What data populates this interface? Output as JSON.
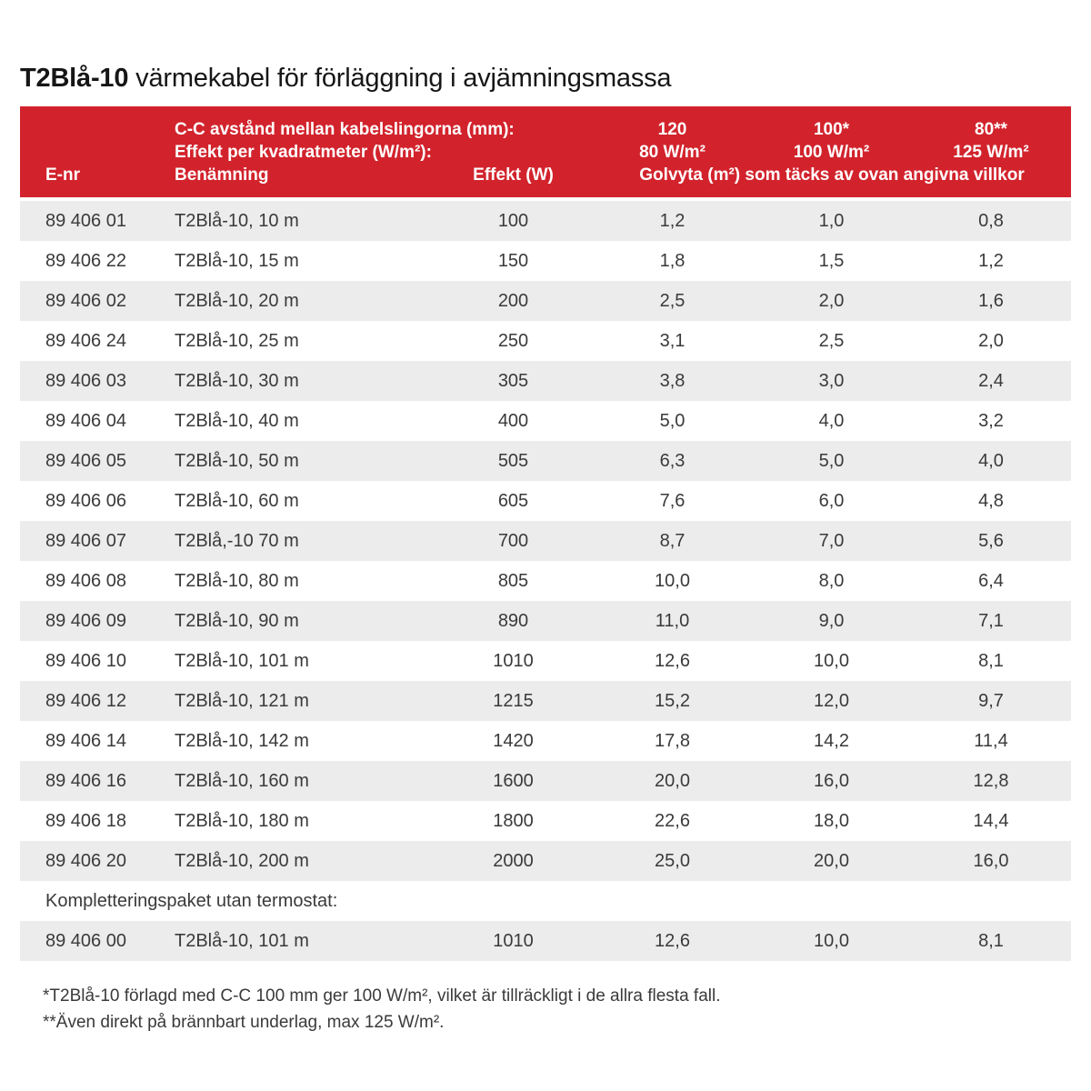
{
  "colors": {
    "header_red": "#d2232c",
    "row_alt": "#ececec"
  },
  "page": {
    "title_bold": "T2Blå-10",
    "title_rest": " värmekabel för förläggning i avjämningsmassa"
  },
  "table": {
    "header": {
      "cc_label": "C-C avstånd mellan kabelslingorna (mm):",
      "effekt_per_kvm_label": "Effekt per kvadratmeter (W/m²):",
      "col_e_nr": "E-nr",
      "col_benamning": "Benämning",
      "col_effekt": "Effekt (W)",
      "golvyta_label": "Golvyta (m²) som täcks av ovan angivna villkor",
      "cc_values": [
        "120",
        "100*",
        "80**"
      ],
      "effekt_per_kvm_values": [
        "80 W/m²",
        "100 W/m²",
        "125 W/m²"
      ]
    },
    "rows": [
      {
        "e_nr": "89 406 01",
        "benamning": "T2Blå-10, 10 m",
        "effekt": "100",
        "areas": [
          "1,2",
          "1,0",
          "0,8"
        ]
      },
      {
        "e_nr": "89 406 22",
        "benamning": "T2Blå-10, 15 m",
        "effekt": "150",
        "areas": [
          "1,8",
          "1,5",
          "1,2"
        ]
      },
      {
        "e_nr": "89 406 02",
        "benamning": "T2Blå-10, 20 m",
        "effekt": "200",
        "areas": [
          "2,5",
          "2,0",
          "1,6"
        ]
      },
      {
        "e_nr": "89 406 24",
        "benamning": "T2Blå-10, 25 m",
        "effekt": "250",
        "areas": [
          "3,1",
          "2,5",
          "2,0"
        ]
      },
      {
        "e_nr": "89 406 03",
        "benamning": "T2Blå-10, 30 m",
        "effekt": "305",
        "areas": [
          "3,8",
          "3,0",
          "2,4"
        ]
      },
      {
        "e_nr": "89 406 04",
        "benamning": "T2Blå-10, 40 m",
        "effekt": "400",
        "areas": [
          "5,0",
          "4,0",
          "3,2"
        ]
      },
      {
        "e_nr": "89 406 05",
        "benamning": "T2Blå-10, 50 m",
        "effekt": "505",
        "areas": [
          "6,3",
          "5,0",
          "4,0"
        ]
      },
      {
        "e_nr": "89 406 06",
        "benamning": "T2Blå-10, 60 m",
        "effekt": "605",
        "areas": [
          "7,6",
          "6,0",
          "4,8"
        ]
      },
      {
        "e_nr": "89 406 07",
        "benamning": "T2Blå,-10 70 m",
        "effekt": "700",
        "areas": [
          "8,7",
          "7,0",
          "5,6"
        ]
      },
      {
        "e_nr": "89 406 08",
        "benamning": "T2Blå-10, 80 m",
        "effekt": "805",
        "areas": [
          "10,0",
          "8,0",
          "6,4"
        ]
      },
      {
        "e_nr": "89 406 09",
        "benamning": "T2Blå-10, 90 m",
        "effekt": "890",
        "areas": [
          "11,0",
          "9,0",
          "7,1"
        ]
      },
      {
        "e_nr": "89 406 10",
        "benamning": "T2Blå-10, 101 m",
        "effekt": "1010",
        "areas": [
          "12,6",
          "10,0",
          "8,1"
        ]
      },
      {
        "e_nr": "89 406 12",
        "benamning": "T2Blå-10, 121 m",
        "effekt": "1215",
        "areas": [
          "15,2",
          "12,0",
          "9,7"
        ]
      },
      {
        "e_nr": "89 406 14",
        "benamning": "T2Blå-10, 142 m",
        "effekt": "1420",
        "areas": [
          "17,8",
          "14,2",
          "11,4"
        ]
      },
      {
        "e_nr": "89 406 16",
        "benamning": "T2Blå-10, 160 m",
        "effekt": "1600",
        "areas": [
          "20,0",
          "16,0",
          "12,8"
        ]
      },
      {
        "e_nr": "89 406 18",
        "benamning": "T2Blå-10, 180 m",
        "effekt": "1800",
        "areas": [
          "22,6",
          "18,0",
          "14,4"
        ]
      },
      {
        "e_nr": "89 406 20",
        "benamning": "T2Blå-10, 200 m",
        "effekt": "2000",
        "areas": [
          "25,0",
          "20,0",
          "16,0"
        ]
      }
    ],
    "section_label": "Kompletteringspaket utan termostat:",
    "extra_rows": [
      {
        "e_nr": "89 406 00",
        "benamning": "T2Blå-10, 101 m",
        "effekt": "1010",
        "areas": [
          "12,6",
          "10,0",
          "8,1"
        ]
      }
    ]
  },
  "footnotes": [
    "*T2Blå-10 förlagd med C-C 100 mm ger 100 W/m², vilket är tillräckligt i de allra flesta fall.",
    "**Även direkt på brännbart underlag, max 125 W/m²."
  ]
}
